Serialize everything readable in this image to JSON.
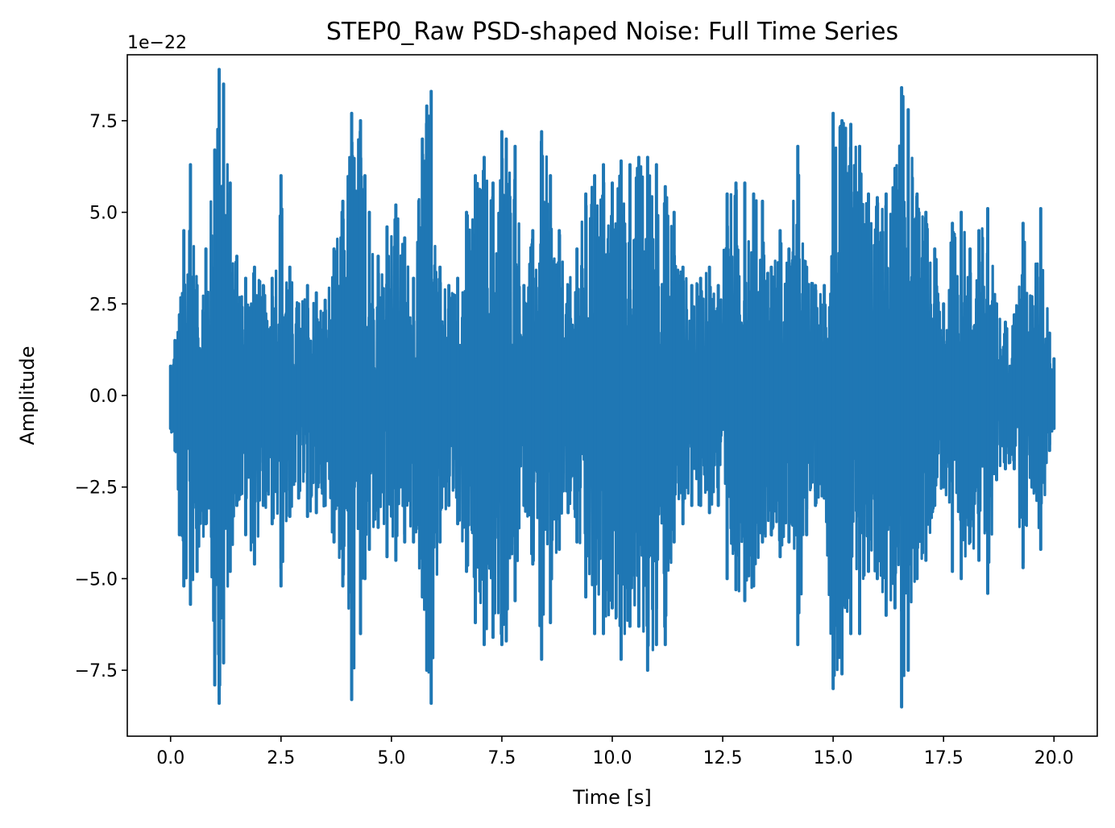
{
  "chart_data": {
    "type": "line",
    "title": "STEP0_Raw PSD-shaped Noise: Full Time Series",
    "xlabel": "Time [s]",
    "ylabel": "Amplitude",
    "y_offset_label": "1e−22",
    "xlim": [
      -0.98,
      20.98
    ],
    "ylim": [
      -9.3,
      9.3
    ],
    "x_ticks": [
      0.0,
      2.5,
      5.0,
      7.5,
      10.0,
      12.5,
      15.0,
      17.5,
      20.0
    ],
    "x_tick_labels": [
      "0.0",
      "2.5",
      "5.0",
      "7.5",
      "10.0",
      "12.5",
      "15.0",
      "17.5",
      "20.0"
    ],
    "y_ticks": [
      -7.5,
      -5.0,
      -2.5,
      0.0,
      2.5,
      5.0,
      7.5
    ],
    "y_tick_labels": [
      "−7.5",
      "−5.0",
      "−2.5",
      "0.0",
      "2.5",
      "5.0",
      "7.5"
    ],
    "series": [
      {
        "name": "noise",
        "color": "#1f77b4",
        "description": "amplitude envelope of dense noise time series (values in units of 1e-22)",
        "x": [
          0.0,
          0.1,
          0.2,
          0.3,
          0.45,
          0.6,
          0.8,
          1.0,
          1.1,
          1.2,
          1.35,
          1.5,
          1.7,
          1.9,
          2.1,
          2.3,
          2.5,
          2.7,
          2.9,
          3.1,
          3.3,
          3.5,
          3.7,
          3.9,
          4.1,
          4.3,
          4.4,
          4.5,
          4.7,
          4.9,
          5.1,
          5.3,
          5.5,
          5.7,
          5.8,
          5.9,
          6.1,
          6.3,
          6.5,
          6.7,
          6.9,
          7.1,
          7.3,
          7.5,
          7.6,
          7.8,
          8.0,
          8.2,
          8.4,
          8.6,
          8.8,
          9.0,
          9.2,
          9.4,
          9.6,
          9.8,
          10.0,
          10.2,
          10.4,
          10.6,
          10.8,
          11.0,
          11.2,
          11.4,
          11.6,
          11.8,
          12.0,
          12.2,
          12.4,
          12.6,
          12.8,
          13.0,
          13.2,
          13.4,
          13.6,
          13.8,
          14.0,
          14.2,
          14.4,
          14.6,
          14.8,
          15.0,
          15.2,
          15.4,
          15.6,
          15.8,
          16.0,
          16.2,
          16.4,
          16.55,
          16.7,
          16.9,
          17.1,
          17.3,
          17.5,
          17.7,
          17.9,
          18.1,
          18.3,
          18.5,
          18.7,
          18.9,
          19.1,
          19.3,
          19.5,
          19.7,
          19.9,
          20.0
        ],
        "upper": [
          0.8,
          1.5,
          2.2,
          4.5,
          6.3,
          3.0,
          4.0,
          6.7,
          8.9,
          8.5,
          5.8,
          3.8,
          3.2,
          3.5,
          3.0,
          3.2,
          6.0,
          3.5,
          2.5,
          3.0,
          2.8,
          2.6,
          4.0,
          5.3,
          7.7,
          7.5,
          6.0,
          5.0,
          3.8,
          4.6,
          5.2,
          4.3,
          3.2,
          7.0,
          7.9,
          8.3,
          3.5,
          3.0,
          3.2,
          5.0,
          6.0,
          6.5,
          5.8,
          7.2,
          7.0,
          6.8,
          3.0,
          4.5,
          7.2,
          6.0,
          4.5,
          3.0,
          4.0,
          5.5,
          6.0,
          6.3,
          5.8,
          6.4,
          6.3,
          6.5,
          6.5,
          6.3,
          5.7,
          5.0,
          3.5,
          3.0,
          3.2,
          3.5,
          3.0,
          5.5,
          5.8,
          5.8,
          5.5,
          5.3,
          3.5,
          4.5,
          4.0,
          6.8,
          3.5,
          3.0,
          3.0,
          7.7,
          7.5,
          7.4,
          6.8,
          5.5,
          5.4,
          5.5,
          6.2,
          8.4,
          7.8,
          5.5,
          5.0,
          4.0,
          2.5,
          4.7,
          5.0,
          4.0,
          4.5,
          5.1,
          2.5,
          2.0,
          2.2,
          4.7,
          2.7,
          5.1,
          1.7,
          1.0
        ],
        "lower": [
          -0.9,
          -1.5,
          -3.8,
          -5.2,
          -5.7,
          -4.8,
          -3.5,
          -7.9,
          -8.4,
          -7.3,
          -4.8,
          -3.0,
          -3.8,
          -4.6,
          -3.0,
          -3.5,
          -5.2,
          -3.3,
          -2.8,
          -3.3,
          -3.2,
          -3.0,
          -4.0,
          -5.2,
          -8.3,
          -6.5,
          -5.0,
          -4.2,
          -3.6,
          -4.4,
          -4.5,
          -4.0,
          -4.0,
          -5.5,
          -7.5,
          -8.4,
          -4.0,
          -3.0,
          -3.5,
          -4.8,
          -6.2,
          -6.8,
          -6.6,
          -6.8,
          -6.7,
          -5.6,
          -3.0,
          -4.6,
          -7.2,
          -6.2,
          -4.2,
          -3.2,
          -4.0,
          -5.5,
          -6.5,
          -6.5,
          -5.8,
          -7.2,
          -6.3,
          -6.3,
          -7.5,
          -6.8,
          -6.8,
          -4.0,
          -3.5,
          -3.0,
          -3.0,
          -3.2,
          -3.0,
          -5.0,
          -5.3,
          -5.6,
          -5.2,
          -4.0,
          -3.8,
          -4.4,
          -4.0,
          -6.8,
          -3.8,
          -3.0,
          -2.8,
          -8.0,
          -7.6,
          -6.5,
          -6.5,
          -4.8,
          -5.0,
          -6.0,
          -5.8,
          -8.5,
          -7.5,
          -5.0,
          -4.5,
          -3.0,
          -2.5,
          -4.8,
          -5.0,
          -4.0,
          -4.5,
          -5.4,
          -2.3,
          -2.0,
          -2.0,
          -4.7,
          -2.5,
          -4.2,
          -1.5,
          -0.9
        ]
      }
    ]
  }
}
